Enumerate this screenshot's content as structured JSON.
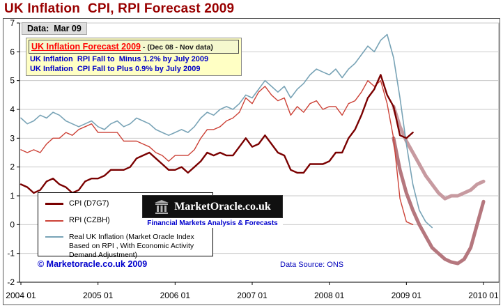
{
  "page": {
    "title": "UK Inflation  CPI, RPI Forecast 2009",
    "data_label": "Data:  Mar 09",
    "copyright": "© Marketoracle.co.uk 2009",
    "data_source": "Data Source: ONS"
  },
  "annotation": {
    "headline": "UK Inflation Forecast 2009",
    "headline_suffix": " - (Dec 08 - Nov data)",
    "line_rpi": "UK Inflation  RPI Fall to  Minus 1.2% by July 2009",
    "line_cpi": "UK Inflation  CPI Fall to Plus 0.9% by July 2009"
  },
  "legend": {
    "items": [
      {
        "label": "CPI (D7G7)",
        "color": "#7a0000",
        "thickness": 3
      },
      {
        "label": "RPI (CZBH)",
        "color": "#cc4136",
        "thickness": 2
      },
      {
        "label": "Real UK Inflation (Market Oracle Index Based on RPI , With Economic Activity Demand Adjustment)",
        "color": "#78a3b6",
        "thickness": 2
      }
    ]
  },
  "logo": {
    "name": "MarketOracle.co.uk",
    "tagline": "Financial Markets Analysis & Forecasts"
  },
  "chart_data": {
    "type": "line",
    "title": "UK Inflation CPI, RPI Forecast 2009",
    "xlabel": "",
    "ylabel": "",
    "months": 73,
    "x_start": "2004-01",
    "x_end": "2010-01",
    "x_tick_labels": [
      "2004 01",
      "2005 01",
      "2006 01",
      "2007 01",
      "2008 01",
      "2009 01",
      "2010 01"
    ],
    "x_tick_month_index": [
      0,
      12,
      24,
      36,
      48,
      60,
      72
    ],
    "ylim": [
      -2,
      7
    ],
    "y_ticks": [
      -2,
      -1,
      0,
      1,
      2,
      3,
      4,
      5,
      6,
      7
    ],
    "grid": "horizontal",
    "legend_position": "middle-left-box",
    "series": [
      {
        "id": "cpi-forecast",
        "name": "CPI Forecast 2009",
        "color": "#c79aa0",
        "width": 5,
        "values": [
          null,
          null,
          null,
          null,
          null,
          null,
          null,
          null,
          null,
          null,
          null,
          null,
          null,
          null,
          null,
          null,
          null,
          null,
          null,
          null,
          null,
          null,
          null,
          null,
          null,
          null,
          null,
          null,
          null,
          null,
          null,
          null,
          null,
          null,
          null,
          null,
          null,
          null,
          null,
          null,
          null,
          null,
          null,
          null,
          null,
          null,
          null,
          null,
          null,
          null,
          null,
          null,
          null,
          null,
          null,
          null,
          null,
          null,
          4.1,
          3.4,
          2.9,
          2.5,
          2.1,
          1.7,
          1.4,
          1.1,
          0.9,
          1.0,
          1.0,
          1.1,
          1.2,
          1.4,
          1.5
        ]
      },
      {
        "id": "rpi-forecast",
        "name": "RPI Forecast 2009",
        "color": "#b5777e",
        "width": 5,
        "values": [
          null,
          null,
          null,
          null,
          null,
          null,
          null,
          null,
          null,
          null,
          null,
          null,
          null,
          null,
          null,
          null,
          null,
          null,
          null,
          null,
          null,
          null,
          null,
          null,
          null,
          null,
          null,
          null,
          null,
          null,
          null,
          null,
          null,
          null,
          null,
          null,
          null,
          null,
          null,
          null,
          null,
          null,
          null,
          null,
          null,
          null,
          null,
          null,
          null,
          null,
          null,
          null,
          null,
          null,
          null,
          null,
          null,
          null,
          3.0,
          1.9,
          1.1,
          0.5,
          0.0,
          -0.4,
          -0.8,
          -1.0,
          -1.2,
          -1.3,
          -1.35,
          -1.2,
          -0.8,
          0.0,
          0.8
        ]
      },
      {
        "id": "real-inflation",
        "name": "Real UK Inflation (Market Oracle Index Based on RPI , With Economic Activity Demand Adjustment)",
        "color": "#78a3b6",
        "width": 1.6,
        "values": [
          3.7,
          3.5,
          3.6,
          3.8,
          3.7,
          3.9,
          3.8,
          3.6,
          3.5,
          3.4,
          3.5,
          3.6,
          3.4,
          3.3,
          3.5,
          3.6,
          3.4,
          3.5,
          3.7,
          3.6,
          3.5,
          3.3,
          3.2,
          3.1,
          3.2,
          3.3,
          3.2,
          3.4,
          3.7,
          3.9,
          3.8,
          4.0,
          4.1,
          4.0,
          4.2,
          4.5,
          4.4,
          4.7,
          5.0,
          4.8,
          4.6,
          4.8,
          4.4,
          4.7,
          4.9,
          5.2,
          5.4,
          5.3,
          5.2,
          5.4,
          5.1,
          5.4,
          5.6,
          5.9,
          6.2,
          6.0,
          6.4,
          6.6,
          5.8,
          4.4,
          2.8,
          1.4,
          0.5,
          0.1,
          -0.1,
          null,
          null,
          null,
          null,
          null,
          null,
          null,
          null
        ]
      },
      {
        "id": "rpi",
        "name": "RPI (CZBH)",
        "color": "#cc4136",
        "width": 1.4,
        "values": [
          2.6,
          2.5,
          2.6,
          2.5,
          2.8,
          3.0,
          3.0,
          3.2,
          3.1,
          3.3,
          3.4,
          3.5,
          3.2,
          3.2,
          3.2,
          3.2,
          2.9,
          2.9,
          2.9,
          2.8,
          2.7,
          2.5,
          2.4,
          2.2,
          2.4,
          2.4,
          2.4,
          2.6,
          3.0,
          3.3,
          3.3,
          3.4,
          3.6,
          3.7,
          3.9,
          4.4,
          4.2,
          4.6,
          4.8,
          4.5,
          4.3,
          4.4,
          3.8,
          4.1,
          3.9,
          4.2,
          4.3,
          4.0,
          4.1,
          4.1,
          3.8,
          4.2,
          4.3,
          4.6,
          5.0,
          4.8,
          5.0,
          4.2,
          3.0,
          0.9,
          0.1,
          0.0,
          null,
          null,
          null,
          null,
          null,
          null,
          null,
          null,
          null,
          null,
          null
        ]
      },
      {
        "id": "cpi",
        "name": "CPI (D7G7)",
        "color": "#7a0000",
        "width": 2.4,
        "values": [
          1.4,
          1.3,
          1.1,
          1.2,
          1.5,
          1.6,
          1.4,
          1.3,
          1.1,
          1.2,
          1.5,
          1.6,
          1.6,
          1.7,
          1.9,
          1.9,
          1.9,
          2.0,
          2.3,
          2.4,
          2.5,
          2.3,
          2.1,
          1.9,
          1.9,
          2.0,
          1.8,
          2.0,
          2.2,
          2.5,
          2.4,
          2.5,
          2.4,
          2.4,
          2.7,
          3.0,
          2.7,
          2.8,
          3.1,
          2.8,
          2.5,
          2.4,
          1.9,
          1.8,
          1.8,
          2.1,
          2.1,
          2.1,
          2.2,
          2.5,
          2.5,
          3.0,
          3.3,
          3.8,
          4.4,
          4.7,
          5.2,
          4.5,
          4.1,
          3.1,
          3.0,
          3.2,
          null,
          null,
          null,
          null,
          null,
          null,
          null,
          null,
          null,
          null,
          null
        ]
      }
    ]
  }
}
